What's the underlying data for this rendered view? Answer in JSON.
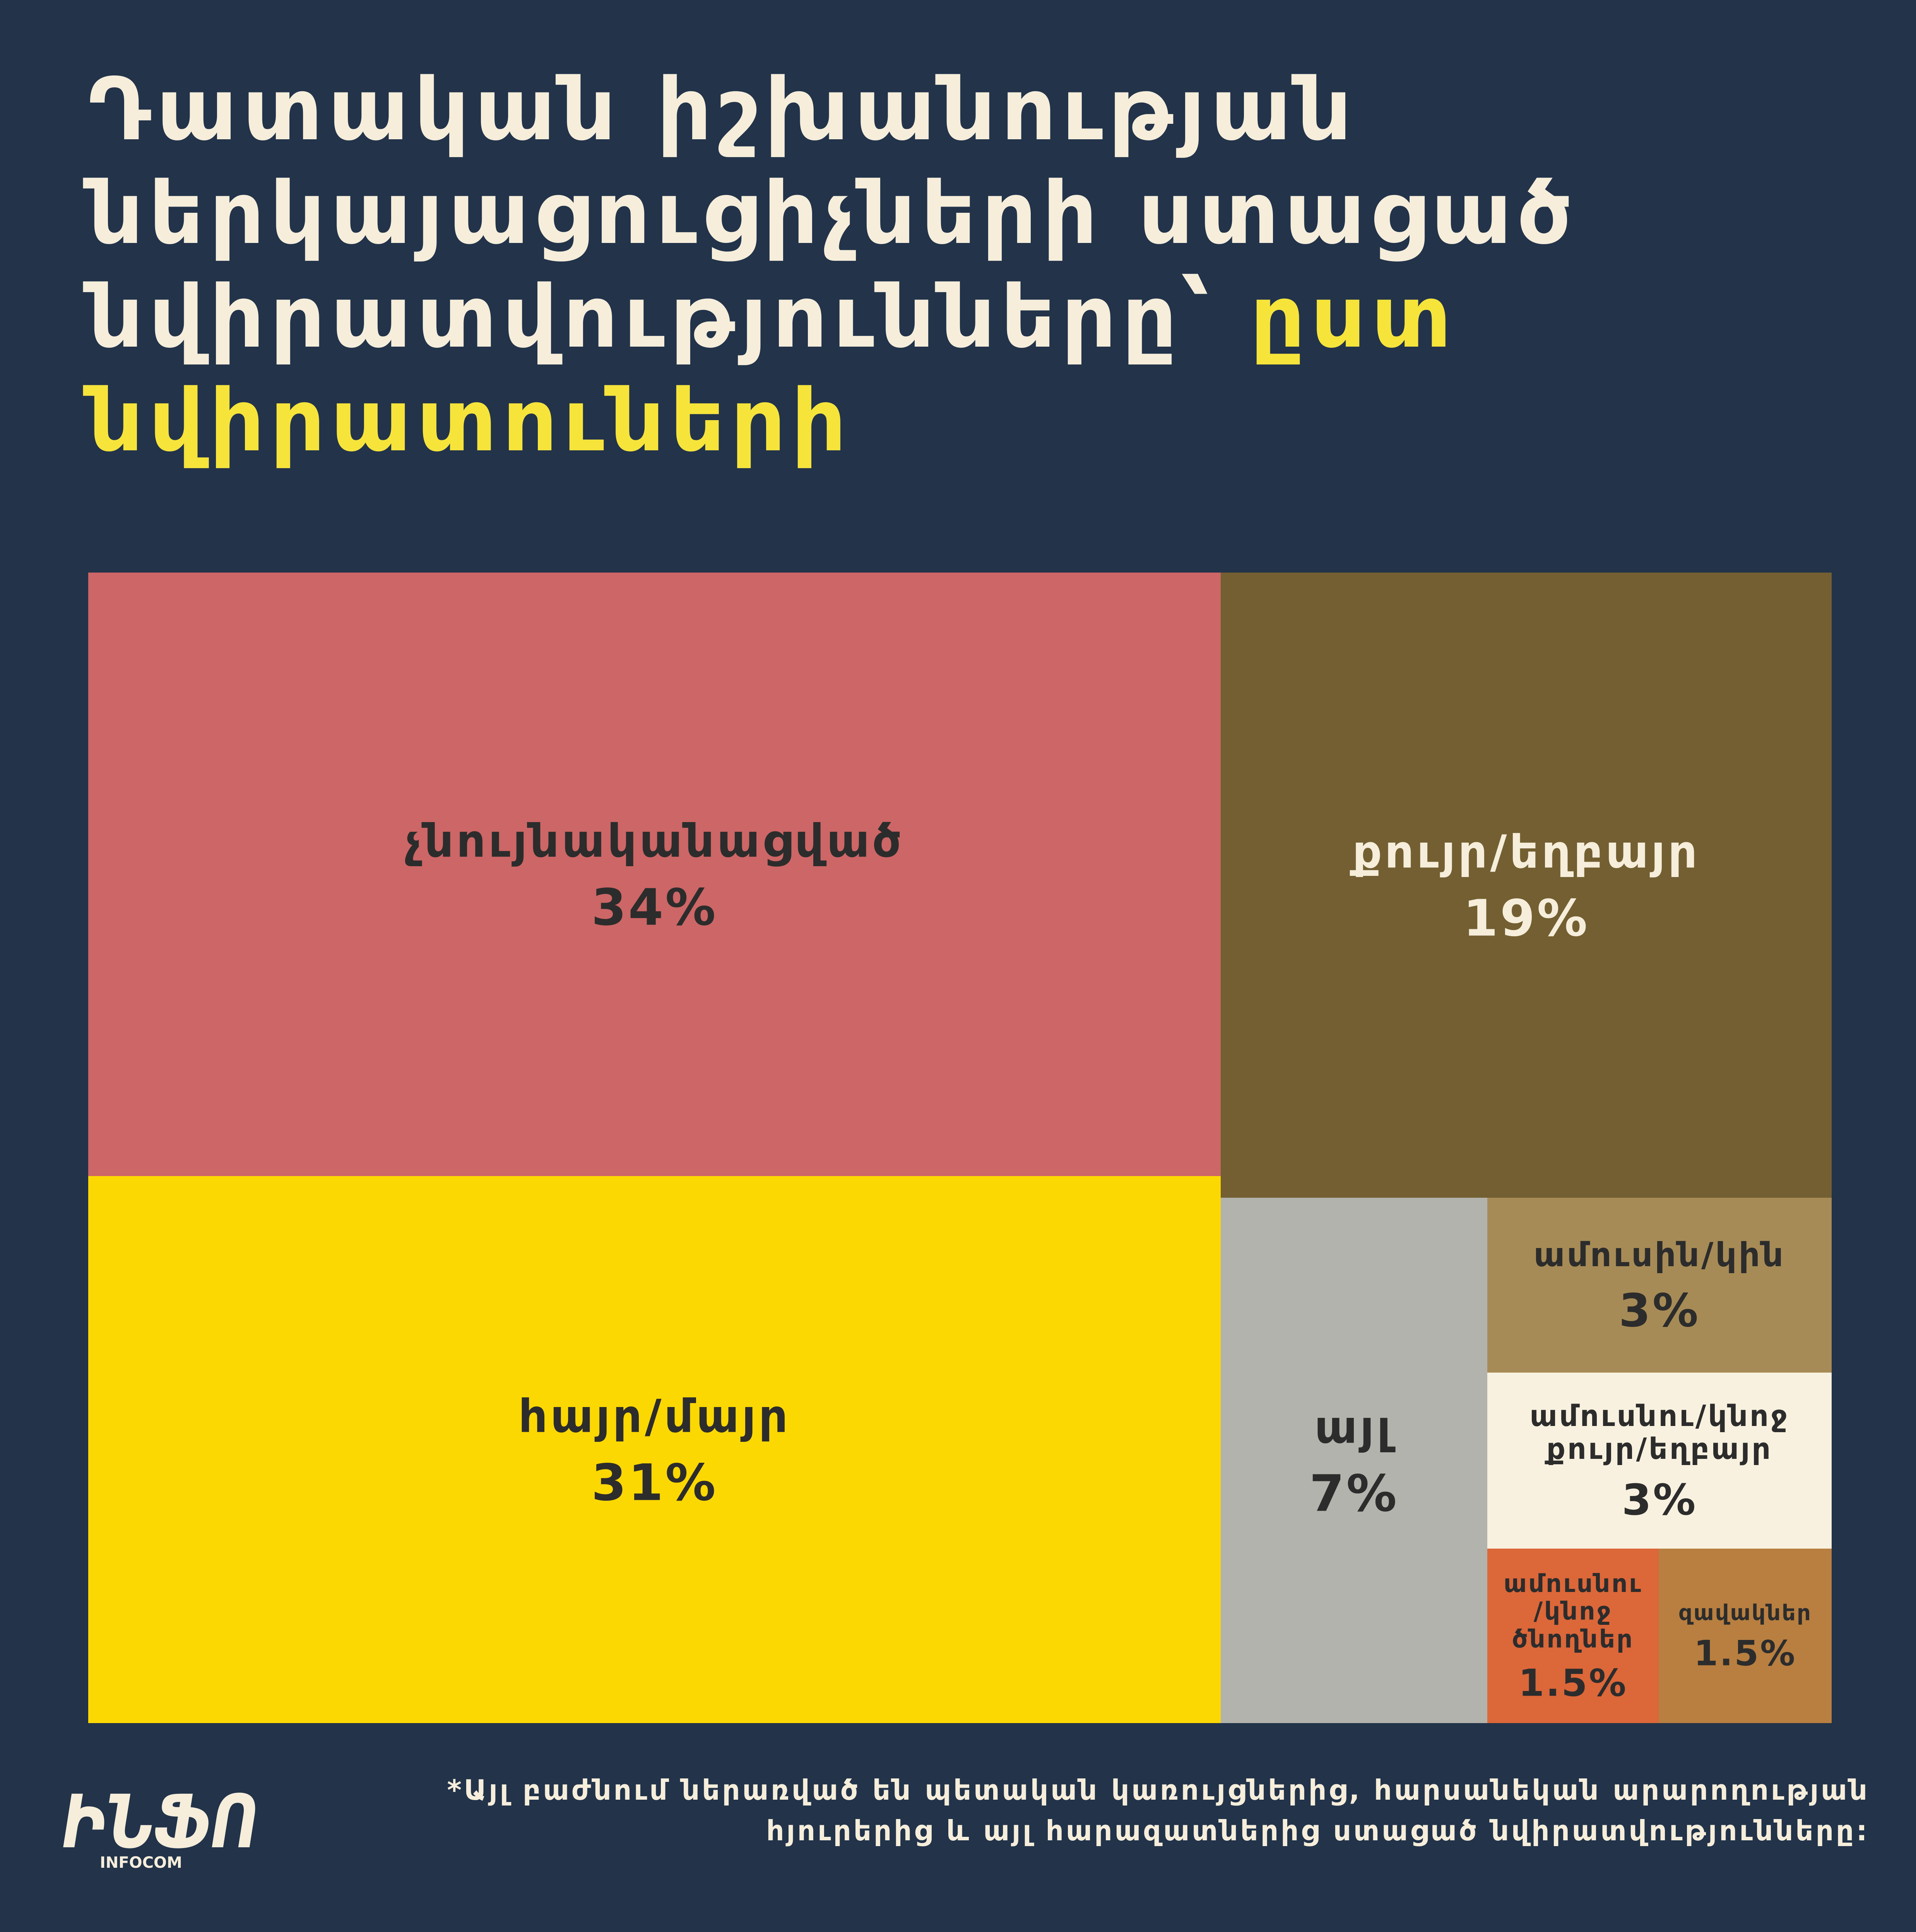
{
  "title": {
    "main": "Դատական իշխանության ներկայացուցիչների ստացած նվիրատվությունները՝",
    "highlight": "ըստ նվիրատուների"
  },
  "colors": {
    "background": "#22334a",
    "title_text": "#f6eedb",
    "title_highlight": "#f6e43b"
  },
  "chart_data": {
    "type": "treemap",
    "unit": "%",
    "items": [
      {
        "label": "չնույնականացված",
        "value": 34,
        "value_label": "34%",
        "color": "#cd6666",
        "text_color": "#2c2c2c"
      },
      {
        "label": "հայր/մայր",
        "value": 31,
        "value_label": "31%",
        "color": "#fcd803",
        "text_color": "#2c2c2c"
      },
      {
        "label": "քույր/եղբայր",
        "value": 19,
        "value_label": "19%",
        "color": "#735f31",
        "text_color": "#f6eedb"
      },
      {
        "label": "այլ",
        "value": 7,
        "value_label": "7%",
        "color": "#b3b3ad",
        "text_color": "#2c2c2c"
      },
      {
        "label": "ամուսին/կին",
        "value": 3,
        "value_label": "3%",
        "color": "#a78b56",
        "text_color": "#2c2c2c"
      },
      {
        "label": "ամուսնու/կնոջ քույր/եղբայր",
        "value": 3,
        "value_label": "3%",
        "color": "#f8f1df",
        "text_color": "#2c2c2c"
      },
      {
        "label": "ամուսնու/կնոջ ծնողներ",
        "value": 1.5,
        "value_label": "1.5%",
        "color": "#dc6739",
        "text_color": "#2c2c2c"
      },
      {
        "label": "զավակներ",
        "value": 1.5,
        "value_label": "1.5%",
        "color": "#b87f40",
        "text_color": "#2c2c2c"
      }
    ]
  },
  "footnote": {
    "line1": "*Այլ բաժնում ներառված են պետական կառույցներից, հարսանեկան արարողության",
    "line2": "հյուրերից և այլ հարազատներից ստացած նվիրատվությունները:"
  },
  "logo": {
    "brand": "ԻՆՖՈ",
    "sub": "INFOCOM"
  }
}
